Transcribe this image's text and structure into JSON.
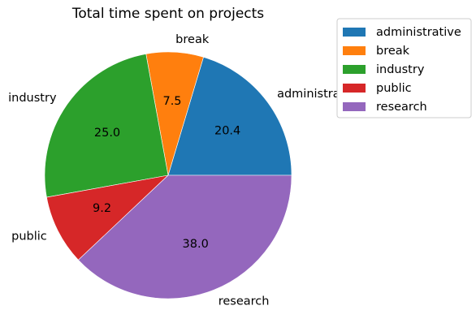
{
  "chart_data": {
    "type": "pie",
    "title": "Total time spent on projects",
    "categories": [
      "administrative",
      "break",
      "industry",
      "public",
      "research"
    ],
    "values": [
      20.4,
      7.5,
      25.0,
      9.2,
      38.0
    ],
    "value_labels": [
      "20.4",
      "7.5",
      "25.0",
      "9.2",
      "38.0"
    ],
    "colors": [
      "#1f77b4",
      "#ff7f0e",
      "#2ca02c",
      "#d62728",
      "#9467bd"
    ],
    "start_angle_deg": 0,
    "direction": "counterclockwise",
    "legend": {
      "placement": "top-right",
      "entries": [
        "administrative",
        "break",
        "industry",
        "public",
        "research"
      ]
    }
  }
}
